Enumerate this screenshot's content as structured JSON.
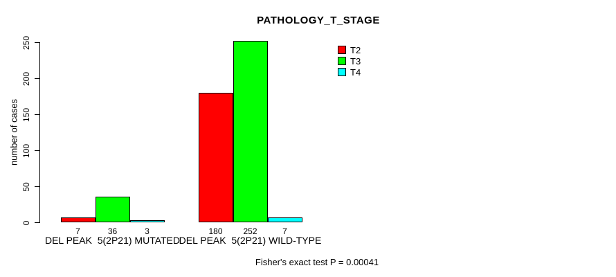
{
  "chart_data": {
    "type": "bar",
    "title": "PATHOLOGY_T_STAGE",
    "ylabel": "number of cases",
    "xlabel": "",
    "categories": [
      "DEL PEAK  5(2P21) MUTATED",
      "DEL PEAK  5(2P21) WILD-TYPE"
    ],
    "series": [
      {
        "name": "T2",
        "color": "#ff0000",
        "values": [
          7,
          180
        ]
      },
      {
        "name": "T3",
        "color": "#00ff00",
        "values": [
          36,
          252
        ]
      },
      {
        "name": "T4",
        "color": "#00ffff",
        "values": [
          3,
          7
        ]
      }
    ],
    "show_bar_values": true,
    "yticks": [
      0,
      50,
      100,
      150,
      200,
      250
    ],
    "ylim": [
      0,
      260
    ],
    "grid": false,
    "legend": {
      "position": "top-right",
      "entries": [
        "T2",
        "T3",
        "T4"
      ]
    },
    "annotation": "Fisher's exact test P = 0.00041"
  },
  "colors": {
    "background": "#ffffff",
    "axis": "#000000",
    "bar_border": "#000000",
    "text": "#000000"
  }
}
